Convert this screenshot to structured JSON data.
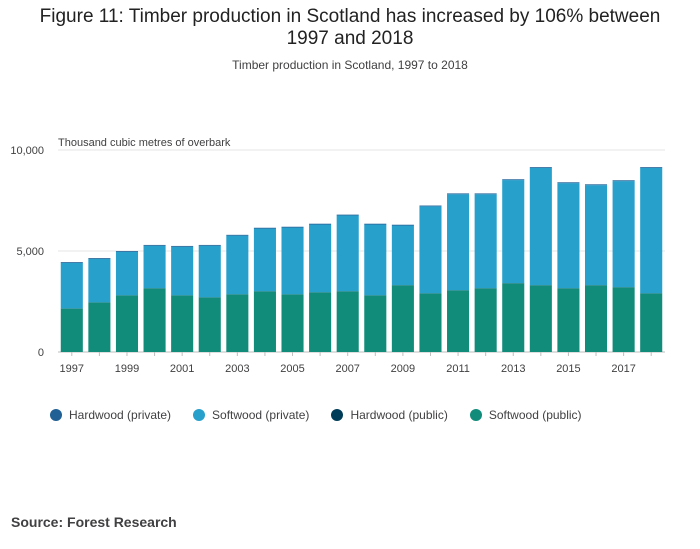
{
  "title": "Figure 11: Timber production in Scotland has increased by 106% between 1997 and 2018",
  "subtitle": "Timber production in Scotland, 1997 to 2018",
  "source": "Source: Forest Research",
  "colors": {
    "hardwood_private": "#206095",
    "softwood_private": "#27a0cc",
    "hardwood_public": "#003c57",
    "softwood_public": "#118c7b"
  },
  "chart_data": {
    "type": "bar",
    "stacked": true,
    "title": "Figure 11: Timber production in Scotland has increased by 106% between 1997 and 2018",
    "subtitle": "Timber production in Scotland, 1997 to 2018",
    "ylabel": "Thousand cubic metres of overbark",
    "xlabel": "",
    "ylim": [
      0,
      10000
    ],
    "yticks": [
      0,
      5000,
      10000
    ],
    "ytick_labels": [
      "0",
      "5,000",
      "10,000"
    ],
    "xtick_labels": [
      "1997",
      "1999",
      "2001",
      "2003",
      "2005",
      "2007",
      "2009",
      "2011",
      "2013",
      "2015",
      "2017"
    ],
    "categories": [
      "1997",
      "1998",
      "1999",
      "2000",
      "2001",
      "2002",
      "2003",
      "2004",
      "2005",
      "2006",
      "2007",
      "2008",
      "2009",
      "2010",
      "2011",
      "2012",
      "2013",
      "2014",
      "2015",
      "2016",
      "2017",
      "2018"
    ],
    "legend_position": "bottom",
    "series": [
      {
        "name": "Softwood (public)",
        "color_key": "softwood_public",
        "values": [
          2150,
          2450,
          2800,
          3150,
          2800,
          2700,
          2850,
          3000,
          2850,
          2950,
          3000,
          2800,
          3300,
          2900,
          3050,
          3150,
          3400,
          3300,
          3150,
          3300,
          3200,
          2900
        ]
      },
      {
        "name": "Hardwood (public)",
        "color_key": "hardwood_public",
        "values": [
          10,
          10,
          10,
          10,
          10,
          10,
          10,
          10,
          10,
          10,
          10,
          10,
          10,
          10,
          10,
          10,
          10,
          10,
          10,
          10,
          10,
          10
        ]
      },
      {
        "name": "Softwood (private)",
        "color_key": "softwood_private",
        "values": [
          2250,
          2150,
          2150,
          2100,
          2400,
          2550,
          2900,
          3100,
          3300,
          3350,
          3750,
          3500,
          2950,
          4300,
          4750,
          4650,
          5100,
          5800,
          5200,
          4950,
          5250,
          6200
        ]
      },
      {
        "name": "Hardwood (private)",
        "color_key": "hardwood_private",
        "values": [
          40,
          40,
          40,
          40,
          40,
          40,
          40,
          40,
          40,
          40,
          40,
          40,
          40,
          40,
          40,
          40,
          40,
          40,
          40,
          40,
          40,
          40
        ]
      }
    ]
  },
  "legend": [
    {
      "label": "Hardwood (private)",
      "color_key": "hardwood_private"
    },
    {
      "label": "Softwood (private)",
      "color_key": "softwood_private"
    },
    {
      "label": "Hardwood (public)",
      "color_key": "hardwood_public"
    },
    {
      "label": "Softwood (public)",
      "color_key": "softwood_public"
    }
  ]
}
